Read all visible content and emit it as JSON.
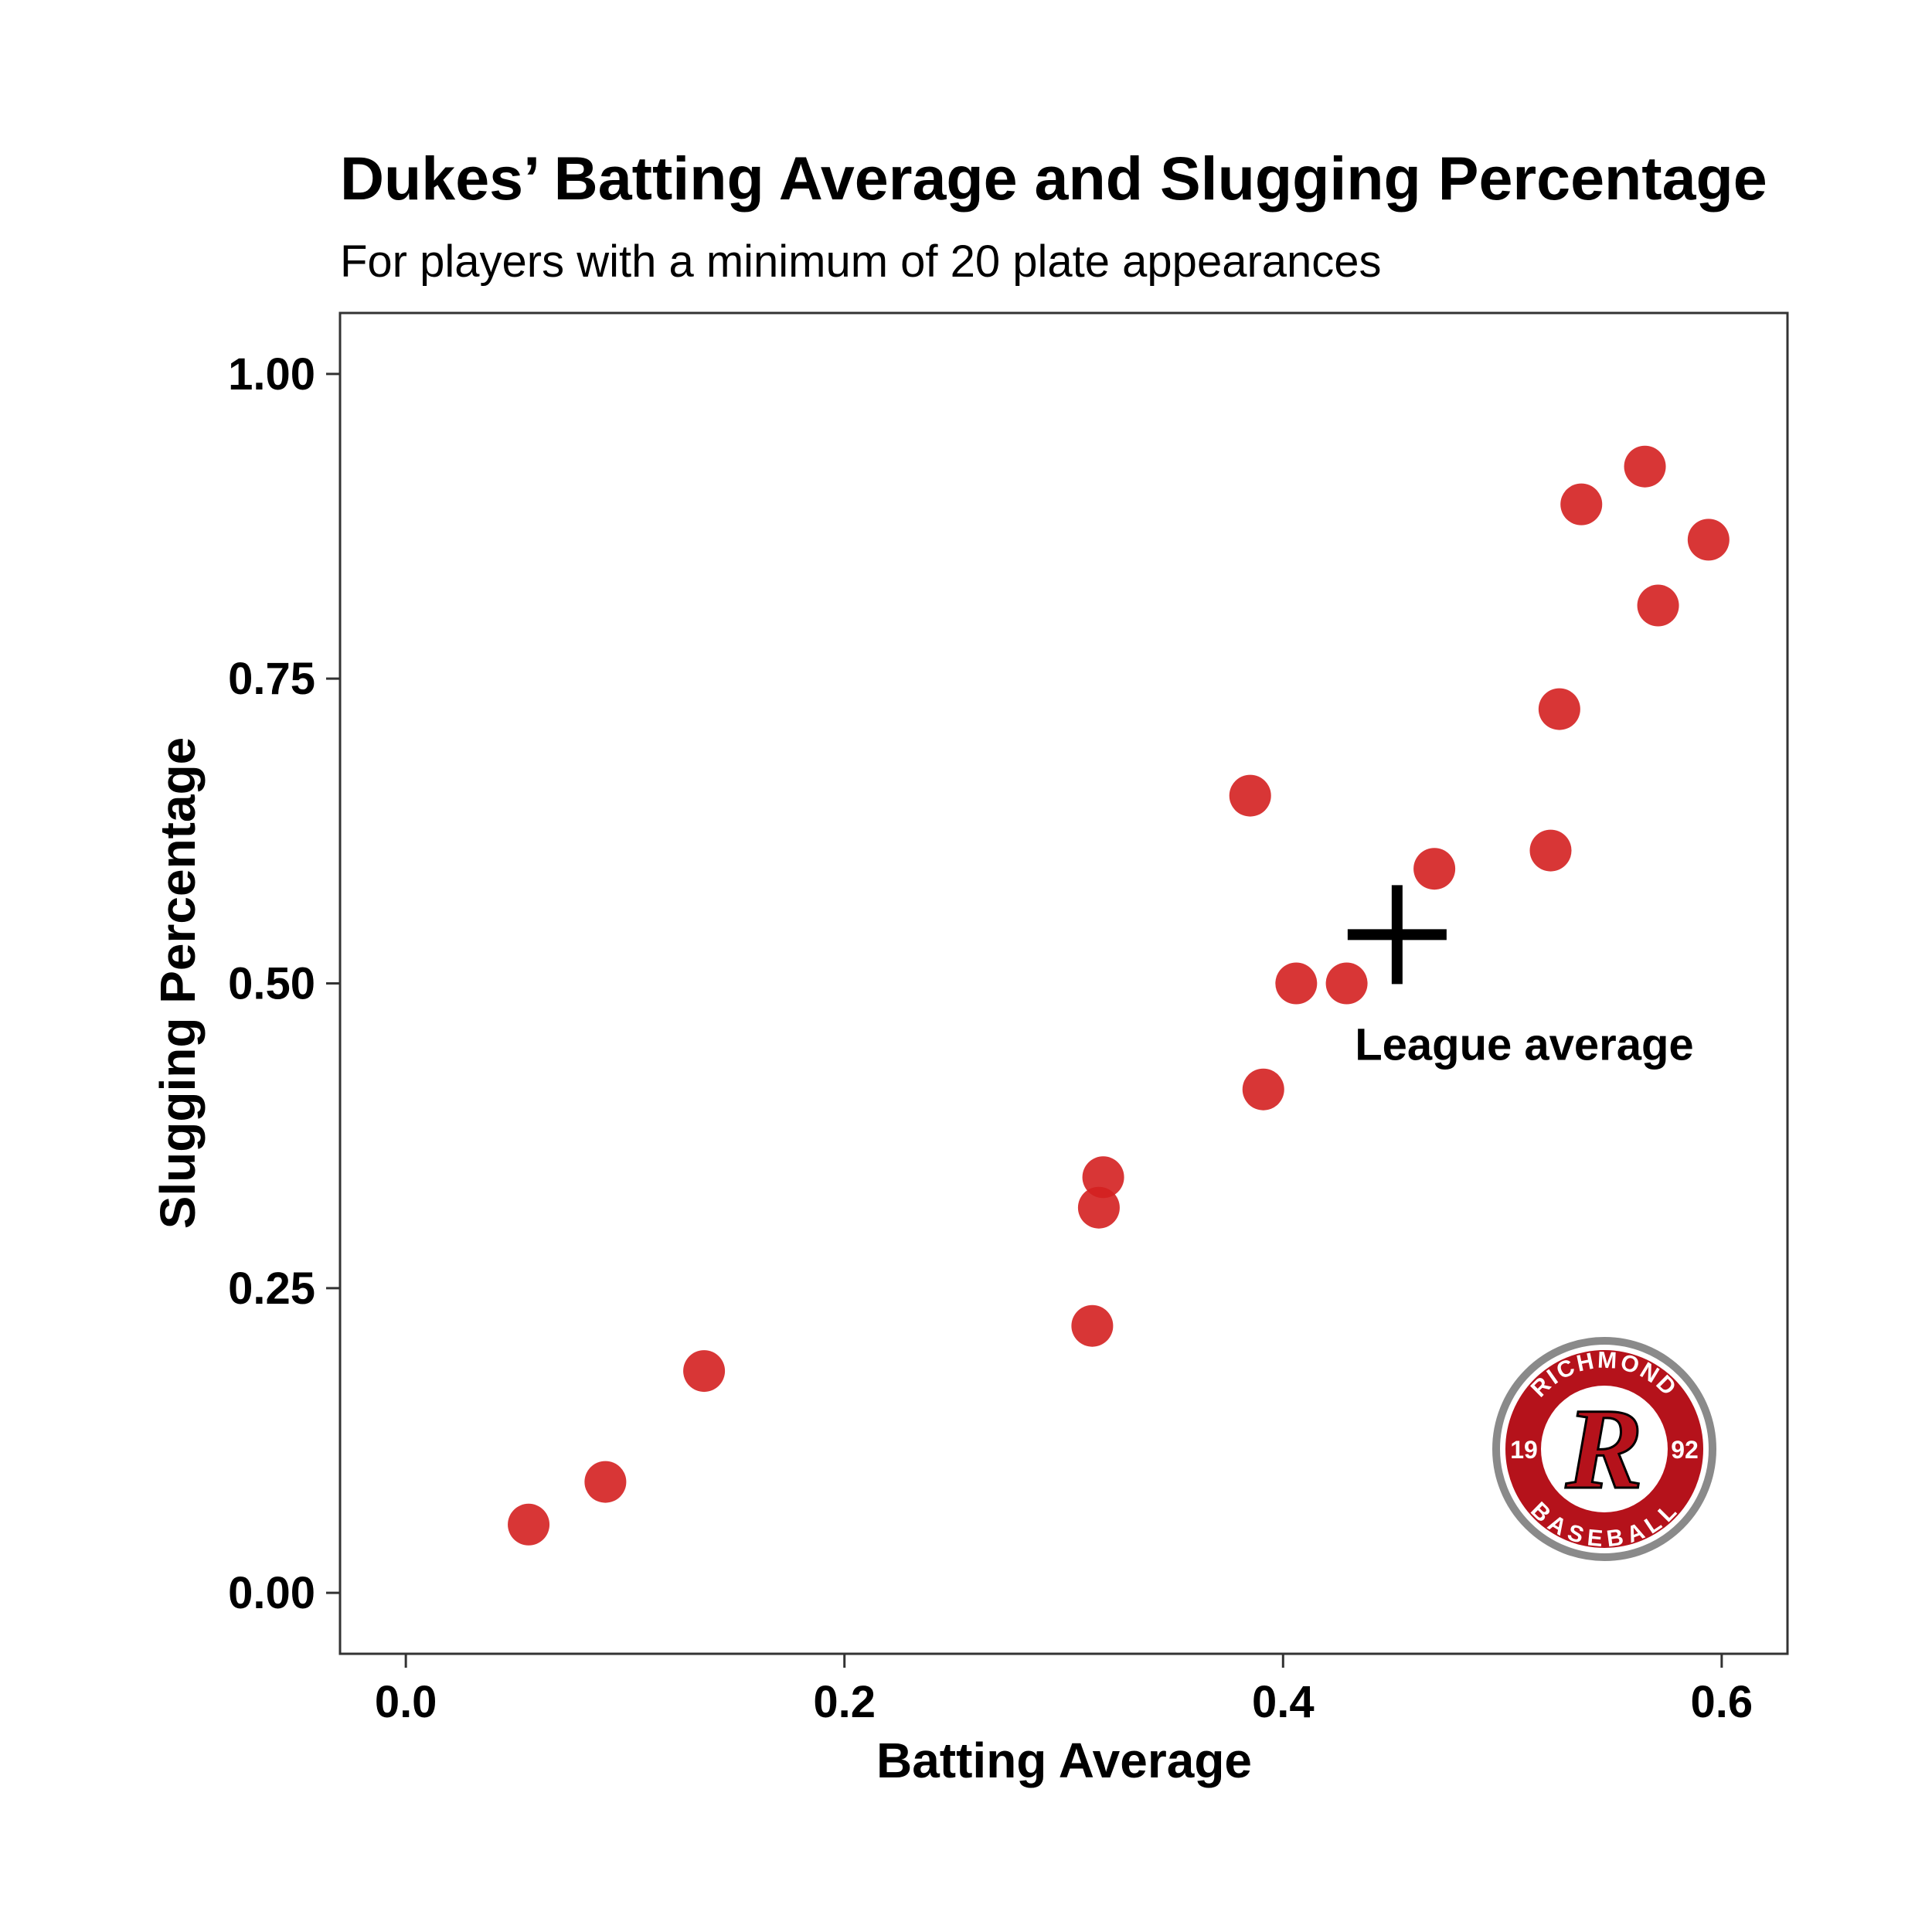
{
  "chart_data": {
    "type": "scatter",
    "title": "Dukes’ Batting Average and Slugging Percentage",
    "subtitle": "For players with a minimum of 20 plate appearances",
    "xlabel": "Batting Average",
    "ylabel": "Slugging Percentage",
    "xlim": [
      -0.03,
      0.63
    ],
    "ylim": [
      -0.05,
      1.05
    ],
    "x_ticks": [
      "0.0",
      "0.2",
      "0.4",
      "0.6"
    ],
    "x_tick_values": [
      0.0,
      0.2,
      0.4,
      0.6
    ],
    "y_ticks": [
      "0.00",
      "0.25",
      "0.50",
      "0.75",
      "1.00"
    ],
    "y_tick_values": [
      0.0,
      0.25,
      0.5,
      0.75,
      1.0
    ],
    "grid": false,
    "point_color": "#d42020",
    "series": [
      {
        "points": [
          {
            "x": 0.056,
            "y": 0.056
          },
          {
            "x": 0.091,
            "y": 0.091
          },
          {
            "x": 0.136,
            "y": 0.182
          },
          {
            "x": 0.313,
            "y": 0.219
          },
          {
            "x": 0.316,
            "y": 0.316
          },
          {
            "x": 0.318,
            "y": 0.341
          },
          {
            "x": 0.385,
            "y": 0.654
          },
          {
            "x": 0.391,
            "y": 0.413
          },
          {
            "x": 0.406,
            "y": 0.5
          },
          {
            "x": 0.429,
            "y": 0.5
          },
          {
            "x": 0.469,
            "y": 0.594
          },
          {
            "x": 0.522,
            "y": 0.609
          },
          {
            "x": 0.526,
            "y": 0.725
          },
          {
            "x": 0.536,
            "y": 0.893
          },
          {
            "x": 0.565,
            "y": 0.924
          },
          {
            "x": 0.571,
            "y": 0.81
          },
          {
            "x": 0.594,
            "y": 0.864
          }
        ]
      }
    ],
    "annotations": [
      {
        "type": "marker",
        "marker": "plus",
        "x": 0.452,
        "y": 0.54
      },
      {
        "type": "text",
        "text": "League average",
        "x": 0.51,
        "y": 0.45
      }
    ]
  },
  "logo": {
    "top_text": "RICHMOND",
    "bottom_text": "BASEBALL",
    "left_text": "19",
    "right_text": "92",
    "center_letter": "R",
    "ring_color": "#b5121b",
    "border_color": "#8a8a8a"
  }
}
